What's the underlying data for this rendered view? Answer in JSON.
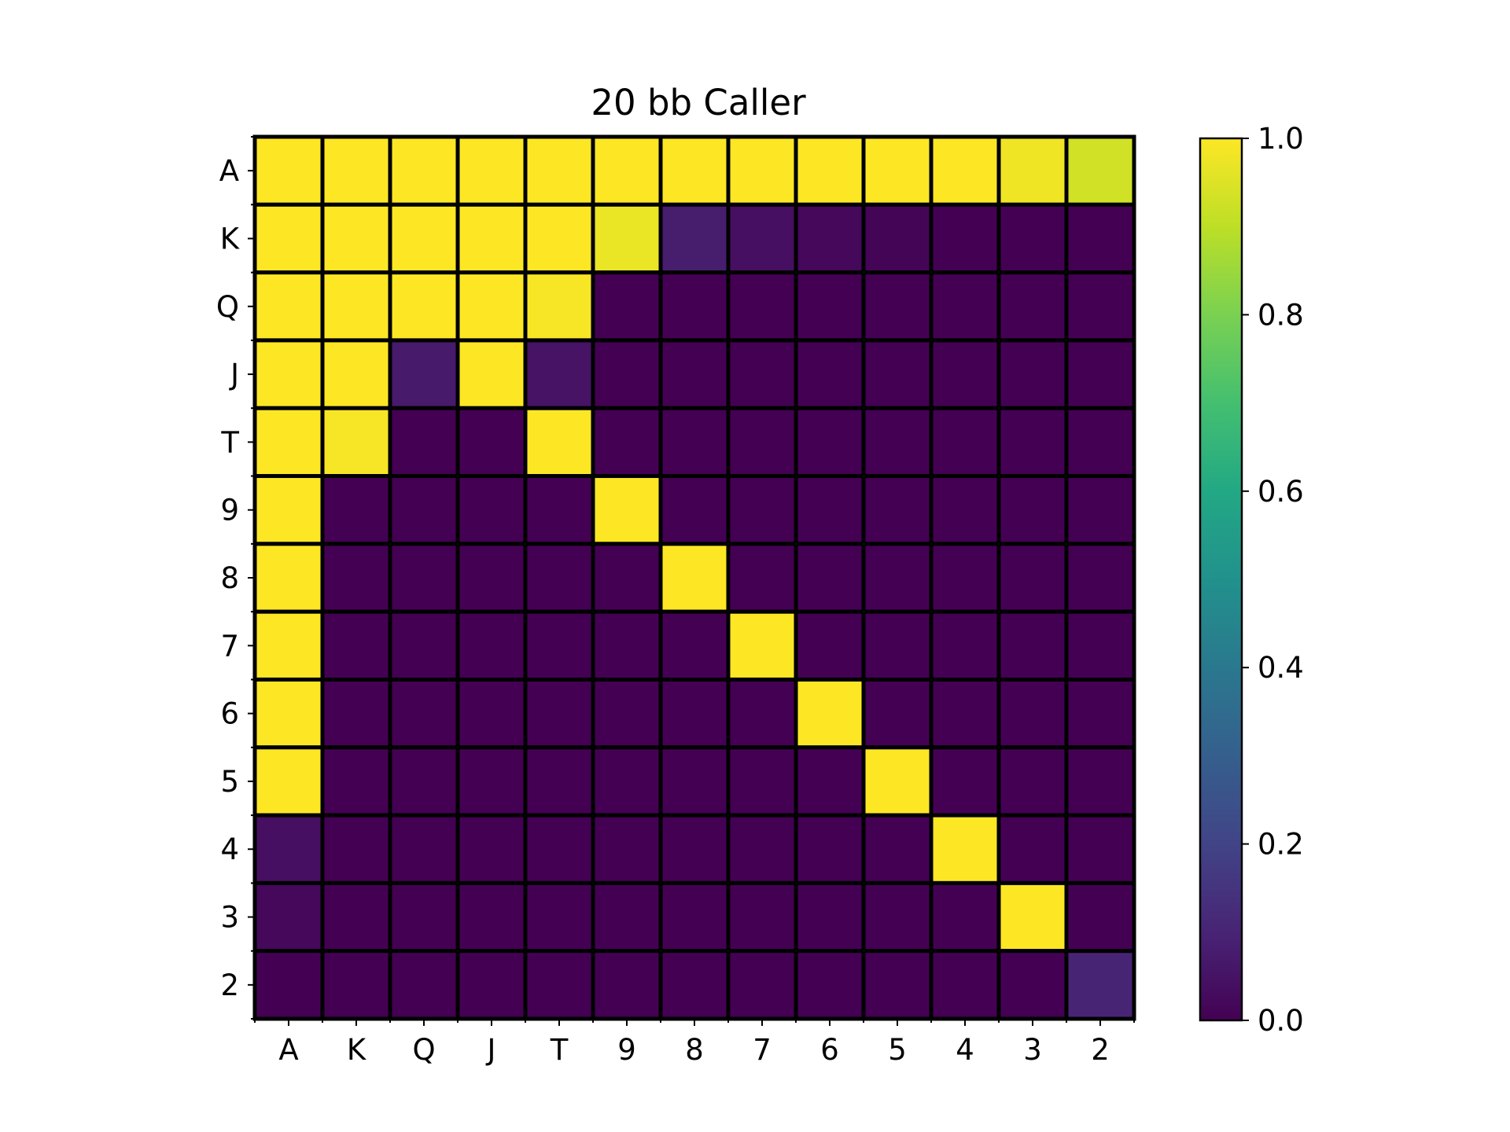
{
  "chart_data": {
    "type": "heatmap",
    "title": "20 bb Caller",
    "xlabel": "",
    "ylabel": "",
    "x_categories": [
      "A",
      "K",
      "Q",
      "J",
      "T",
      "9",
      "8",
      "7",
      "6",
      "5",
      "4",
      "3",
      "2"
    ],
    "y_categories": [
      "A",
      "K",
      "Q",
      "J",
      "T",
      "9",
      "8",
      "7",
      "6",
      "5",
      "4",
      "3",
      "2"
    ],
    "values": [
      [
        1.0,
        1.0,
        1.0,
        1.0,
        1.0,
        1.0,
        1.0,
        1.0,
        1.0,
        1.0,
        1.0,
        0.98,
        0.93
      ],
      [
        1.0,
        1.0,
        1.0,
        1.0,
        1.0,
        0.97,
        0.08,
        0.04,
        0.02,
        0.01,
        0.0,
        0.0,
        0.0
      ],
      [
        1.0,
        1.0,
        1.0,
        1.0,
        0.99,
        0.0,
        0.0,
        0.0,
        0.0,
        0.0,
        0.0,
        0.0,
        0.0
      ],
      [
        1.0,
        1.0,
        0.07,
        1.0,
        0.05,
        0.0,
        0.0,
        0.0,
        0.0,
        0.0,
        0.0,
        0.0,
        0.0
      ],
      [
        1.0,
        0.99,
        0.0,
        0.0,
        1.0,
        0.0,
        0.0,
        0.0,
        0.0,
        0.0,
        0.0,
        0.0,
        0.0
      ],
      [
        1.0,
        0.0,
        0.0,
        0.0,
        0.0,
        1.0,
        0.0,
        0.0,
        0.0,
        0.0,
        0.0,
        0.0,
        0.0
      ],
      [
        1.0,
        0.0,
        0.0,
        0.0,
        0.0,
        0.0,
        1.0,
        0.0,
        0.0,
        0.0,
        0.0,
        0.0,
        0.0
      ],
      [
        1.0,
        0.0,
        0.0,
        0.0,
        0.0,
        0.0,
        0.0,
        1.0,
        0.0,
        0.0,
        0.0,
        0.0,
        0.0
      ],
      [
        1.0,
        0.0,
        0.0,
        0.0,
        0.0,
        0.0,
        0.0,
        0.0,
        1.0,
        0.0,
        0.0,
        0.0,
        0.0
      ],
      [
        1.0,
        0.0,
        0.0,
        0.0,
        0.0,
        0.0,
        0.0,
        0.0,
        0.0,
        1.0,
        0.0,
        0.0,
        0.0
      ],
      [
        0.04,
        0.0,
        0.0,
        0.0,
        0.0,
        0.0,
        0.0,
        0.0,
        0.0,
        0.0,
        1.0,
        0.0,
        0.0
      ],
      [
        0.02,
        0.0,
        0.0,
        0.0,
        0.0,
        0.0,
        0.0,
        0.0,
        0.0,
        0.0,
        0.0,
        1.0,
        0.0
      ],
      [
        0.0,
        0.0,
        0.0,
        0.0,
        0.0,
        0.0,
        0.0,
        0.0,
        0.0,
        0.0,
        0.0,
        0.0,
        0.1
      ]
    ],
    "colormap": "viridis",
    "colorbar": {
      "range": [
        0.0,
        1.0
      ],
      "ticks": [
        0.0,
        0.2,
        0.4,
        0.6,
        0.8,
        1.0
      ],
      "tick_labels": [
        "0.0",
        "0.2",
        "0.4",
        "0.6",
        "0.8",
        "1.0"
      ]
    },
    "cell_edge_color": "#000000",
    "grid": false
  }
}
